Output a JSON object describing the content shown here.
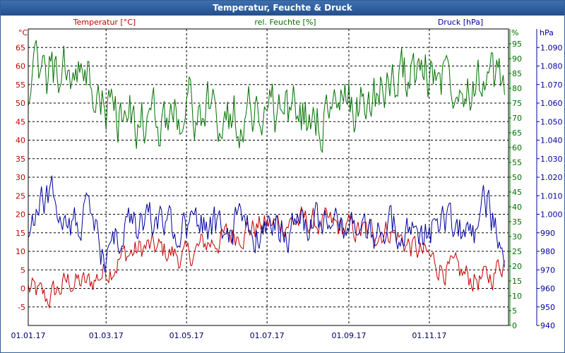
{
  "window": {
    "title": "Temperatur, Feuchte & Druck"
  },
  "colors": {
    "temperature": "#c00000",
    "humidity": "#007000",
    "pressure": "#0000a0",
    "grid": "#000000",
    "title_bar": "#2c5a96"
  },
  "chart_data": {
    "type": "line",
    "title": "Temperatur, Feuchte & Druck",
    "grid": true,
    "x_axis": {
      "label": "",
      "ticks": [
        "01.01.17",
        "01.03.17",
        "01.05.17",
        "01.07.17",
        "01.09.17",
        "01.11.17"
      ],
      "range": [
        "2017-01-01",
        "2017-12-31"
      ],
      "tick_dates": [
        "2017-01-01",
        "2017-03-01",
        "2017-05-01",
        "2017-07-01",
        "2017-09-01",
        "2017-11-01"
      ]
    },
    "axes": {
      "temperature": {
        "title": "Temperatur [°C]",
        "unit": "°C",
        "range": [
          -10,
          70
        ],
        "ticks": [
          "-5",
          "0",
          "5",
          "10",
          "15",
          "20",
          "25",
          "30",
          "35",
          "40",
          "45",
          "50",
          "55",
          "60",
          "65"
        ]
      },
      "humidity": {
        "title": "rel. Feuchte [%]",
        "unit": "%",
        "range": [
          0,
          100
        ],
        "ticks": [
          "0",
          "5",
          "10",
          "15",
          "20",
          "25",
          "30",
          "35",
          "40",
          "45",
          "50",
          "55",
          "60",
          "65",
          "70",
          "75",
          "80",
          "85",
          "90",
          "95"
        ]
      },
      "pressure": {
        "title": "Druck [hPa]",
        "unit": "hPa",
        "range": [
          940,
          1100
        ],
        "ticks": [
          "940",
          "950",
          "960",
          "970",
          "980",
          "990",
          "1.000",
          "1.010",
          "1.020",
          "1.030",
          "1.040",
          "1.050",
          "1.060",
          "1.070",
          "1.080",
          "1.090"
        ]
      }
    },
    "series": [
      {
        "name": "Temperatur [°C]",
        "axis": "temperature",
        "x": [
          "2017-01-01",
          "2017-01-15",
          "2017-02-01",
          "2017-02-15",
          "2017-03-01",
          "2017-03-15",
          "2017-04-01",
          "2017-04-15",
          "2017-05-01",
          "2017-05-15",
          "2017-06-01",
          "2017-06-15",
          "2017-07-01",
          "2017-07-15",
          "2017-08-01",
          "2017-08-15",
          "2017-09-01",
          "2017-09-15",
          "2017-10-01",
          "2017-10-15",
          "2017-11-01",
          "2017-11-15",
          "2017-12-01",
          "2017-12-15",
          "2017-12-28"
        ],
        "values": [
          0,
          -3,
          2,
          1,
          5,
          9,
          11,
          10,
          8,
          12,
          14,
          16,
          17,
          18,
          18,
          17,
          16,
          15,
          16,
          12,
          8,
          5,
          3,
          2,
          8
        ]
      },
      {
        "name": "rel. Feuchte [%]",
        "axis": "humidity",
        "x": [
          "2017-01-01",
          "2017-01-15",
          "2017-02-01",
          "2017-02-15",
          "2017-03-01",
          "2017-03-15",
          "2017-04-01",
          "2017-04-15",
          "2017-05-01",
          "2017-05-15",
          "2017-06-01",
          "2017-06-15",
          "2017-07-01",
          "2017-07-15",
          "2017-08-01",
          "2017-08-15",
          "2017-09-01",
          "2017-09-15",
          "2017-10-01",
          "2017-10-15",
          "2017-11-01",
          "2017-11-15",
          "2017-12-01",
          "2017-12-15",
          "2017-12-28"
        ],
        "values": [
          82,
          84,
          85,
          82,
          73,
          70,
          68,
          70,
          74,
          72,
          70,
          72,
          74,
          72,
          70,
          72,
          74,
          76,
          82,
          84,
          85,
          86,
          84,
          82,
          80
        ]
      },
      {
        "name": "Druck [hPa]",
        "axis": "pressure",
        "x": [
          "2017-01-01",
          "2017-01-15",
          "2017-02-01",
          "2017-02-15",
          "2017-03-01",
          "2017-03-15",
          "2017-04-01",
          "2017-04-15",
          "2017-05-01",
          "2017-05-15",
          "2017-06-01",
          "2017-06-15",
          "2017-07-01",
          "2017-07-15",
          "2017-08-01",
          "2017-08-15",
          "2017-09-01",
          "2017-09-15",
          "2017-10-01",
          "2017-10-15",
          "2017-11-01",
          "2017-11-15",
          "2017-12-01",
          "2017-12-15",
          "2017-12-28"
        ],
        "values": [
          990,
          1010,
          995,
          1000,
          975,
          990,
          998,
          995,
          994,
          992,
          992,
          994,
          990,
          992,
          994,
          993,
          992,
          988,
          992,
          990,
          990,
          995,
          985,
          1005,
          978
        ]
      }
    ]
  }
}
